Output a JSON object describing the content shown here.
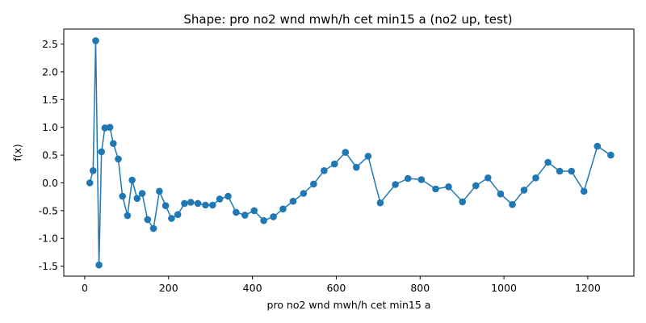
{
  "chart_data": {
    "type": "line",
    "title": "Shape: pro no2 wnd mwh/h cet min15 a (no2 up, test)",
    "xlabel": "pro no2 wnd mwh/h cet min15 a",
    "ylabel": "f(x)",
    "xlim": [
      -50,
      1310
    ],
    "ylim": [
      -1.68,
      2.77
    ],
    "xticks": [
      0,
      200,
      400,
      600,
      800,
      1000,
      1200
    ],
    "yticks": [
      -1.5,
      -1.0,
      -0.5,
      0.0,
      0.5,
      1.0,
      1.5,
      2.0,
      2.5
    ],
    "grid": false,
    "legend": "none",
    "series": [
      {
        "color": "#1f77b4",
        "marker": "circle",
        "x": [
          12,
          20,
          26,
          34,
          40,
          48,
          60,
          68,
          80,
          90,
          102,
          113,
          125,
          137,
          150,
          164,
          178,
          193,
          207,
          222,
          238,
          253,
          270,
          288,
          305,
          322,
          342,
          361,
          382,
          404,
          427,
          450,
          473,
          497,
          522,
          546,
          571,
          596,
          622,
          648,
          676,
          705,
          741,
          771,
          803,
          837,
          868,
          901,
          933,
          962,
          992,
          1020,
          1048,
          1076,
          1105,
          1133,
          1161,
          1191,
          1223,
          1255
        ],
        "y": [
          0.0,
          0.22,
          2.56,
          -1.48,
          0.56,
          0.99,
          1.0,
          0.71,
          0.43,
          -0.24,
          -0.59,
          0.05,
          -0.28,
          -0.19,
          -0.66,
          -0.82,
          -0.15,
          -0.41,
          -0.64,
          -0.57,
          -0.37,
          -0.35,
          -0.37,
          -0.4,
          -0.4,
          -0.29,
          -0.24,
          -0.53,
          -0.58,
          -0.5,
          -0.68,
          -0.61,
          -0.47,
          -0.33,
          -0.19,
          -0.02,
          0.22,
          0.34,
          0.55,
          0.28,
          0.48,
          -0.36,
          -0.03,
          0.08,
          0.06,
          -0.11,
          -0.07,
          -0.34,
          -0.05,
          0.09,
          -0.2,
          -0.39,
          -0.13,
          0.09,
          0.37,
          0.21,
          0.21,
          -0.15,
          0.66,
          0.5
        ]
      }
    ]
  }
}
